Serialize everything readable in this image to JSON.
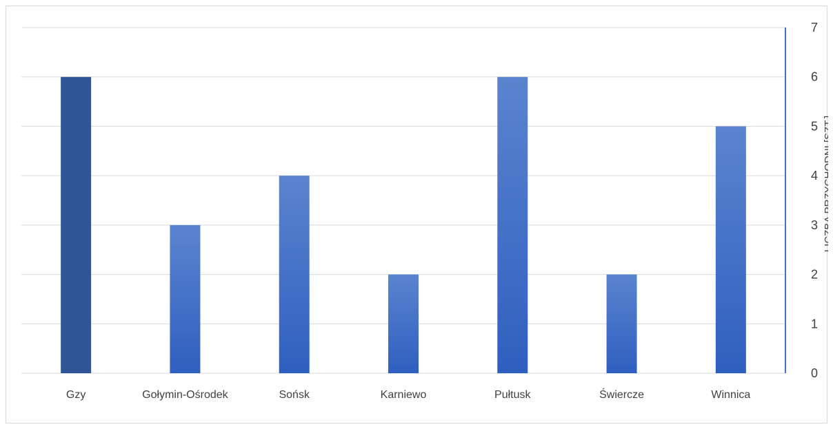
{
  "chart_data": {
    "type": "bar",
    "categories": [
      "Gzy",
      "Gołymin-Ośrodek",
      "Sońsk",
      "Karniewo",
      "Pułtusk",
      "Świercze",
      "Winnica"
    ],
    "values": [
      6,
      3,
      4,
      2,
      6,
      2,
      5
    ],
    "title": "",
    "xlabel": "",
    "ylabel": "LICZBA PRZYCHODNI [SZT.]",
    "ylim": [
      0,
      7
    ],
    "yticks": [
      0,
      1,
      2,
      3,
      4,
      5,
      6,
      7
    ],
    "y_axis_side": "right",
    "grid": true,
    "legend": "none",
    "colors": {
      "bar_top": "#5b84cf",
      "bar_bottom": "#2f5fbf",
      "highlight_bar": "#2f5597",
      "highlight_index": 0,
      "gridline": "#d9d9d9",
      "axis_line": "#4472c4",
      "text": "#404040"
    }
  }
}
